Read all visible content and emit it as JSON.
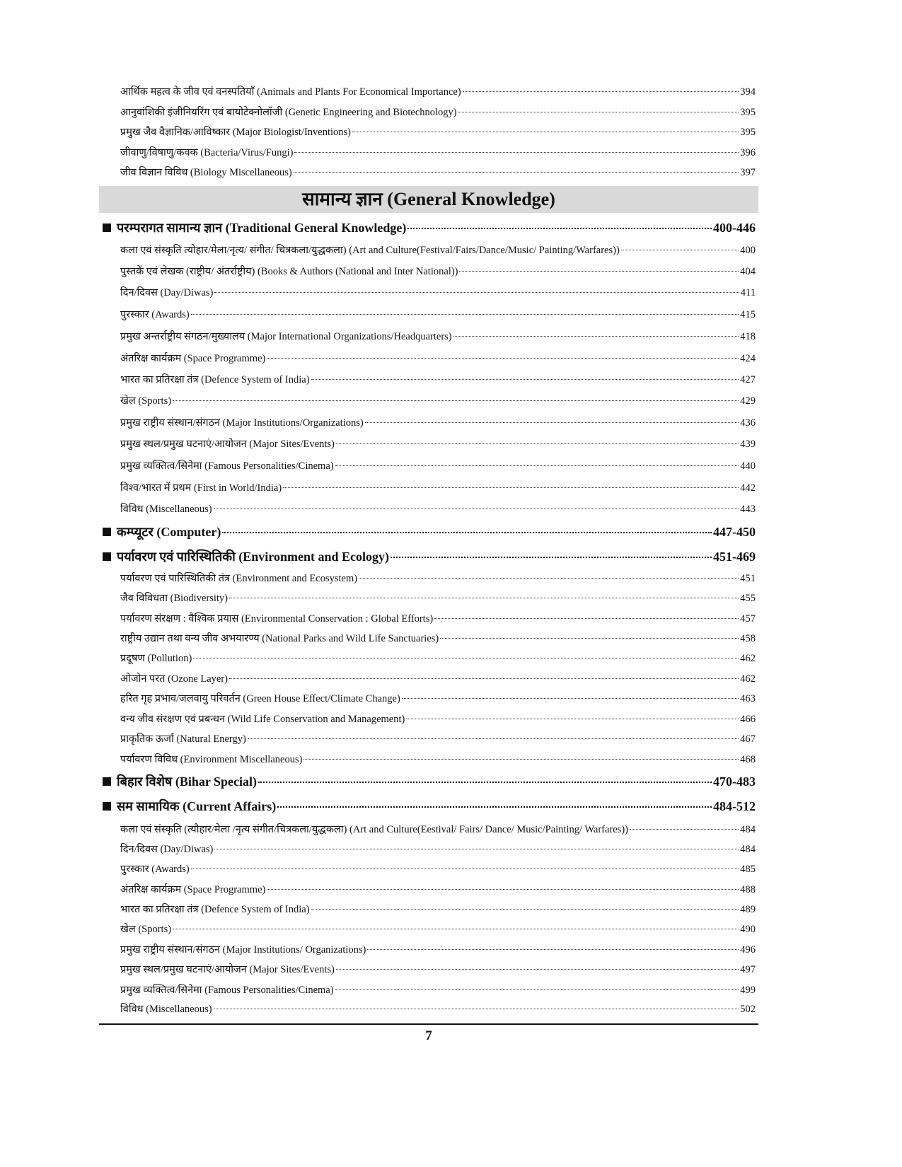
{
  "entries": [
    {
      "level": "sub",
      "label": "आर्थिक महत्व के जीव एवं वनस्पतियाँ (Animals and Plants For Economical Importance)",
      "page": "394"
    },
    {
      "level": "sub",
      "label": "आनुवांशिकी इंजीनियरिंग एवं बायोटेक्नोलॉजी (Genetic Engineering and Biotechnology)",
      "page": "395"
    },
    {
      "level": "sub",
      "label": "प्रमुख जैव वैज्ञानिक/आविष्कार (Major Biologist/Inventions)",
      "page": "395"
    },
    {
      "level": "sub",
      "label": "जीवाणु/विषाणु/कवक (Bacteria/Virus/Fungi)",
      "page": "396"
    },
    {
      "level": "sub",
      "label": "जीव विज्ञान विविध (Biology Miscellaneous)",
      "page": "397"
    },
    {
      "level": "heading",
      "label": "सामान्य ज्ञान (General Knowledge)"
    },
    {
      "level": "main",
      "label": "परम्परागत सामान्य ज्ञान (Traditional General Knowledge)",
      "page": "400-446"
    },
    {
      "level": "sub",
      "label": "कला एवं संस्कृति त्योहार/मेला/नृत्य/ संगीत/ चित्रकला/युद्धकला) (Art and Culture(Festival/Fairs/Dance/Music/ Painting/Warfares))",
      "page": "400"
    },
    {
      "level": "sub",
      "label": "पुस्तकें एवं लेखक (राष्ट्रीय/ अंतर्राष्ट्रीय) (Books & Authors (National and Inter National))",
      "page": "404"
    },
    {
      "level": "sub",
      "label": "दिन/दिवस (Day/Diwas)",
      "page": "411"
    },
    {
      "level": "sub",
      "label": "पुरस्कार (Awards)",
      "page": "415"
    },
    {
      "level": "sub",
      "label": "प्रमुख अन्तर्राष्ट्रीय संगठन/मुख्यालय (Major International Organizations/Headquarters)",
      "page": "418"
    },
    {
      "level": "sub",
      "label": "अंतरिक्ष कार्यक्रम (Space Programme)",
      "page": "424"
    },
    {
      "level": "sub",
      "label": "भारत का प्रतिरक्षा तंत्र (Defence System of India)",
      "page": "427"
    },
    {
      "level": "sub",
      "label": "खेल (Sports)",
      "page": "429"
    },
    {
      "level": "sub",
      "label": "प्रमुख राष्ट्रीय संस्थान/संगठन (Major Institutions/Organizations)",
      "page": "436"
    },
    {
      "level": "sub",
      "label": "प्रमुख स्थल/प्रमुख घटनाएं/आयोजन (Major Sites/Events)",
      "page": "439"
    },
    {
      "level": "sub",
      "label": "प्रमुख व्यक्तित्व/सिनेमा (Famous Personalities/Cinema)",
      "page": "440"
    },
    {
      "level": "sub",
      "label": "विश्व/भारत में प्रथम (First in World/India)",
      "page": "442"
    },
    {
      "level": "sub",
      "label": "विविध (Miscellaneous)",
      "page": "443"
    },
    {
      "level": "main",
      "label": "कम्प्यूटर (Computer)",
      "page": "447-450"
    },
    {
      "level": "main",
      "label": "पर्यावरण एवं पारिस्थितिकी (Environment and Ecology)",
      "page": "451-469"
    },
    {
      "level": "sub",
      "label": "पर्यावरण एवं पारिस्थितिकी तंत्र (Environment and Ecosystem)",
      "page": "451"
    },
    {
      "level": "sub",
      "label": "जैव विविधता (Biodiversity)",
      "page": "455"
    },
    {
      "level": "sub",
      "label": "पर्यावरण संरक्षण : वैश्विक प्रयास (Environmental Conservation : Global Efforts)",
      "page": "457"
    },
    {
      "level": "sub",
      "label": "राष्ट्रीय उद्यान तथा वन्य जीव अभयारण्य (National Parks and Wild Life Sanctuaries)",
      "page": "458"
    },
    {
      "level": "sub",
      "label": "प्रदूषण (Pollution)",
      "page": "462"
    },
    {
      "level": "sub",
      "label": "ओजोन परत (Ozone Layer)",
      "page": "462"
    },
    {
      "level": "sub",
      "label": "हरित गृह प्रभाव/जलवायु परिवर्तन (Green House Effect/Climate Change)",
      "page": "463"
    },
    {
      "level": "sub",
      "label": "वन्य जीव संरक्षण एवं प्रबन्धन (Wild Life Conservation and Management)",
      "page": "466"
    },
    {
      "level": "sub",
      "label": "प्राकृतिक ऊर्जा (Natural Energy)",
      "page": "467"
    },
    {
      "level": "sub",
      "label": "पर्यावरण विविध (Environment Miscellaneous)",
      "page": "468"
    },
    {
      "level": "main",
      "label": "बिहार विशेष (Bihar Special)",
      "page": "470-483"
    },
    {
      "level": "main",
      "label": "सम सामायिक (Current Affairs)",
      "page": "484-512"
    },
    {
      "level": "sub",
      "label": "कला एवं संस्कृति (त्यौहार/मेला /नृत्य संगीत/चित्रकला/युद्धकला) (Art and Culture(Eestival/ Fairs/ Dance/ Music/Painting/ Warfares))",
      "page": "484"
    },
    {
      "level": "sub",
      "label": "दिन/दिवस (Day/Diwas)",
      "page": "484"
    },
    {
      "level": "sub",
      "label": "पुरस्कार (Awards)",
      "page": "485"
    },
    {
      "level": "sub",
      "label": "अंतरिक्ष कार्यक्रम (Space Programme)",
      "page": "488"
    },
    {
      "level": "sub",
      "label": "भारत का प्रतिरक्षा तंत्र (Defence System of India)",
      "page": "489"
    },
    {
      "level": "sub",
      "label": "खेल (Sports)",
      "page": "490"
    },
    {
      "level": "sub",
      "label": "प्रमुख राष्ट्रीय संस्थान/संगठन (Major Institutions/ Organizations)",
      "page": "496"
    },
    {
      "level": "sub",
      "label": "प्रमुख स्थल/प्रमुख घटनाएं/आयोजन (Major Sites/Events)",
      "page": "497"
    },
    {
      "level": "sub",
      "label": "प्रमुख व्यक्तित्व/सिनेमा (Famous Personalities/Cinema)",
      "page": "499"
    },
    {
      "level": "sub",
      "label": "विविध (Miscellaneous)",
      "page": "502"
    }
  ],
  "footer": {
    "page_number": "7"
  }
}
